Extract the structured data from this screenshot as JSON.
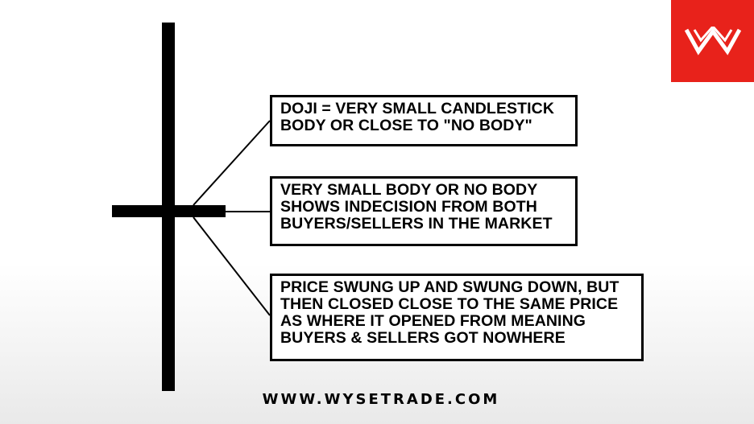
{
  "notes": {
    "doji_definition": "DOJI = VERY SMALL CANDLESTICK\nBODY OR CLOSE TO \"NO BODY\"",
    "indecision": "VERY SMALL BODY OR NO BODY\nSHOWS INDECISION FROM BOTH\nBUYERS/SELLERS IN THE MARKET",
    "price_swing": "PRICE SWUNG UP AND SWUNG DOWN, BUT\nTHEN CLOSED CLOSE TO THE SAME PRICE\nAS WHERE IT OPENED FROM MEANING\nBUYERS & SELLERS GOT NOWHERE"
  },
  "footer": {
    "website": "WWW.WYSETRADE.COM"
  },
  "brand": {
    "logo": "wysetrade-w-logo",
    "logo_bg_color": "#e8221b",
    "logo_fg_color": "#ffffff"
  }
}
